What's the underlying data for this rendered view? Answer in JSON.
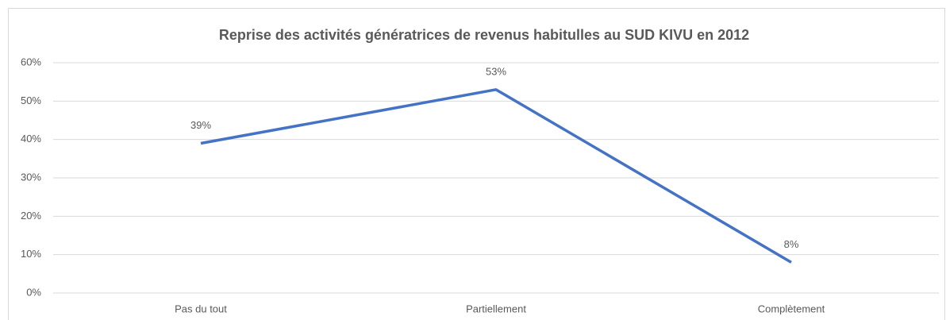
{
  "chart_data": {
    "type": "line",
    "title": "Reprise des activités génératrices de revenus habitulles au SUD KIVU en 2012",
    "categories": [
      "Pas du tout",
      "Partiellement",
      "Complètement"
    ],
    "series": [
      {
        "name": "Reprise",
        "color": "#4472c4",
        "values": [
          39,
          53,
          8
        ],
        "value_labels": [
          "39%",
          "53%",
          "8%"
        ]
      }
    ],
    "ylim": [
      0,
      60
    ],
    "yticks": [
      {
        "value": 0,
        "label": "0%"
      },
      {
        "value": 10,
        "label": "10%"
      },
      {
        "value": 20,
        "label": "20%"
      },
      {
        "value": 30,
        "label": "30%"
      },
      {
        "value": 40,
        "label": "40%"
      },
      {
        "value": 50,
        "label": "50%"
      },
      {
        "value": 60,
        "label": "60%"
      }
    ],
    "grid": true
  }
}
